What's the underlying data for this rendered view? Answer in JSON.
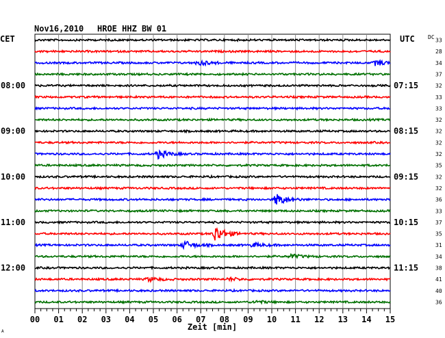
{
  "header": {
    "date": "Nov16,2010",
    "station": "HROE HHZ BW 01"
  },
  "left_zone": "CET",
  "right_zone": "UTC",
  "dc_label": "DC",
  "footer_mark": "A",
  "chart_data": {
    "type": "line",
    "title": "Nov16,2010   HROE HHZ BW 01",
    "xlabel": "Zeit [min]",
    "xlim": [
      0,
      15
    ],
    "x_ticks": [
      "00",
      "01",
      "02",
      "03",
      "04",
      "05",
      "06",
      "07",
      "08",
      "09",
      "10",
      "11",
      "12",
      "13",
      "14",
      "15"
    ],
    "left_hour_labels": [
      {
        "row": 4,
        "label": "08:00"
      },
      {
        "row": 8,
        "label": "09:00"
      },
      {
        "row": 12,
        "label": "10:00"
      },
      {
        "row": 16,
        "label": "11:00"
      },
      {
        "row": 20,
        "label": "12:00"
      }
    ],
    "right_hour_labels": [
      {
        "row": 4,
        "label": "07:15"
      },
      {
        "row": 8,
        "label": "08:15"
      },
      {
        "row": 12,
        "label": "09:15"
      },
      {
        "row": 16,
        "label": "10:15"
      },
      {
        "row": 20,
        "label": "11:15"
      }
    ],
    "trace_colors": [
      "#000000",
      "#ff0000",
      "#0000ff",
      "#007000"
    ],
    "dc_values": [
      "33",
      "28",
      "34",
      "37",
      "32",
      "33",
      "33",
      "32",
      "32",
      "32",
      "32",
      "35",
      "32",
      "32",
      "36",
      "33",
      "37",
      "35",
      "31",
      "34",
      "38",
      "41",
      "40",
      "36"
    ],
    "events": [
      {
        "row": 2,
        "minute": 6.9,
        "amplitude": 4
      },
      {
        "row": 2,
        "minute": 14.4,
        "amplitude": 4
      },
      {
        "row": 10,
        "minute": 5.2,
        "amplitude": 6
      },
      {
        "row": 14,
        "minute": 10.2,
        "amplitude": 9
      },
      {
        "row": 17,
        "minute": 7.6,
        "amplitude": 12
      },
      {
        "row": 18,
        "minute": 6.3,
        "amplitude": 6
      },
      {
        "row": 18,
        "minute": 9.2,
        "amplitude": 3
      },
      {
        "row": 19,
        "minute": 10.8,
        "amplitude": 3
      },
      {
        "row": 21,
        "minute": 4.8,
        "amplitude": 3
      },
      {
        "row": 21,
        "minute": 8.2,
        "amplitude": 2
      },
      {
        "row": 23,
        "minute": 9.3,
        "amplitude": 2
      }
    ]
  }
}
